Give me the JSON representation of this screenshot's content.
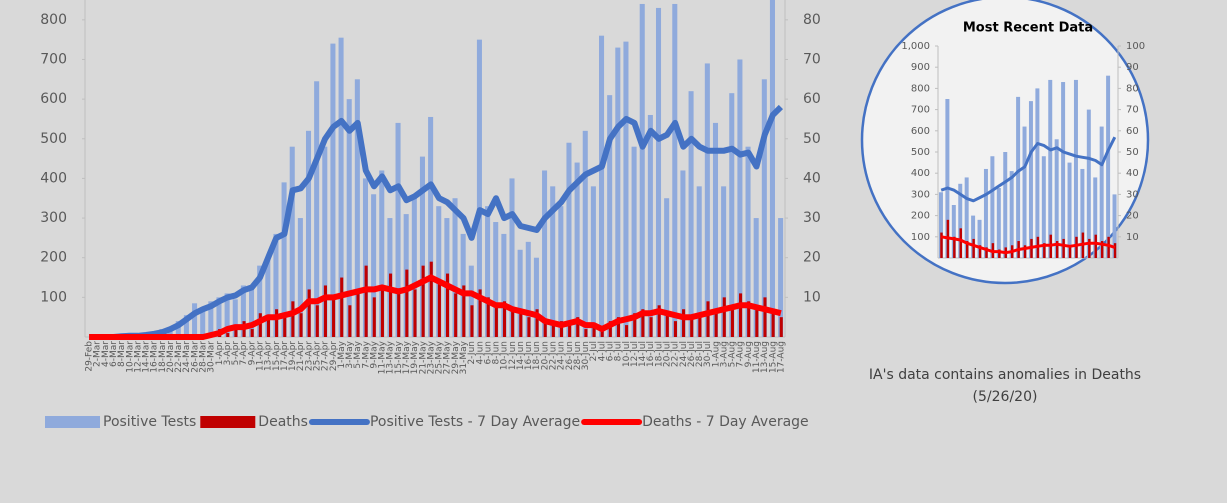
{
  "chart_data": [
    {
      "type": "combo",
      "categories": [
        "29-Feb",
        "2-Mar",
        "4-Mar",
        "6-Mar",
        "8-Mar",
        "10-Mar",
        "12-Mar",
        "14-Mar",
        "16-Mar",
        "18-Mar",
        "20-Mar",
        "22-Mar",
        "24-Mar",
        "26-Mar",
        "28-Mar",
        "30-Mar",
        "1-Apr",
        "3-Apr",
        "5-Apr",
        "7-Apr",
        "9-Apr",
        "11-Apr",
        "13-Apr",
        "15-Apr",
        "17-Apr",
        "19-Apr",
        "21-Apr",
        "23-Apr",
        "25-Apr",
        "27-Apr",
        "29-Apr",
        "1-May",
        "3-May",
        "5-May",
        "7-May",
        "9-May",
        "11-May",
        "13-May",
        "15-May",
        "17-May",
        "19-May",
        "21-May",
        "23-May",
        "25-May",
        "27-May",
        "29-May",
        "31-May",
        "2-Jun",
        "4-Jun",
        "6-Jun",
        "8-Jun",
        "10-Jun",
        "12-Jun",
        "14-Jun",
        "16-Jun",
        "18-Jun",
        "20-Jun",
        "22-Jun",
        "24-Jun",
        "26-Jun",
        "28-Jun",
        "30-Jun",
        "2-Jul",
        "4-Jul",
        "6-Jul",
        "8-Jul",
        "10-Jul",
        "12-Jul",
        "14-Jul",
        "16-Jul",
        "18-Jul",
        "20-Jul",
        "22-Jul",
        "24-Jul",
        "26-Jul",
        "28-Jul",
        "30-Jul",
        "1-Aug",
        "3-Aug",
        "5-Aug",
        "7-Aug",
        "9-Aug",
        "11-Aug",
        "13-Aug",
        "15-Aug",
        "17-Aug"
      ],
      "series": [
        {
          "name": "Positive Tests",
          "type": "bar",
          "color": "#8faadc",
          "values": [
            0,
            0,
            0,
            0,
            3,
            2,
            5,
            8,
            10,
            20,
            25,
            40,
            55,
            85,
            75,
            90,
            100,
            110,
            95,
            130,
            120,
            180,
            195,
            260,
            390,
            480,
            300,
            520,
            645,
            480,
            740,
            755,
            600,
            650,
            400,
            360,
            420,
            300,
            540,
            310,
            360,
            455,
            555,
            330,
            300,
            350,
            260,
            180,
            750,
            330,
            290,
            260,
            400,
            220,
            240,
            200,
            420,
            380,
            330,
            490,
            440,
            520,
            380,
            760,
            610,
            730,
            745,
            480,
            840,
            560,
            830,
            350,
            840,
            420,
            620,
            380,
            690,
            540,
            380,
            615,
            700,
            480,
            300,
            650,
            850,
            300
          ]
        },
        {
          "name": "Deaths",
          "type": "bar",
          "axis": "y2",
          "color": "#c00000",
          "values": [
            0,
            0,
            0,
            0,
            0,
            0,
            0,
            0,
            0,
            0,
            0,
            0,
            0,
            0,
            0,
            1,
            2,
            1,
            3,
            4,
            2,
            6,
            5,
            7,
            5,
            9,
            6,
            12,
            8,
            13,
            10,
            15,
            8,
            11,
            18,
            10,
            13,
            16,
            12,
            17,
            12,
            18,
            19,
            14,
            16,
            11,
            13,
            8,
            12,
            10,
            8,
            9,
            7,
            6,
            5,
            7,
            4,
            3,
            4,
            3,
            5,
            2,
            3,
            2,
            4,
            5,
            3,
            6,
            7,
            5,
            8,
            6,
            4,
            7,
            5,
            6,
            9,
            7,
            10,
            8,
            11,
            9,
            7,
            10,
            6,
            5
          ]
        },
        {
          "name": "Positive Tests - 7 Day Average",
          "type": "line",
          "color": "#4472c4",
          "values": [
            0,
            0,
            0,
            0,
            2,
            3,
            3,
            5,
            8,
            12,
            20,
            30,
            45,
            60,
            70,
            78,
            90,
            100,
            105,
            118,
            125,
            150,
            200,
            250,
            260,
            370,
            375,
            400,
            450,
            500,
            530,
            545,
            520,
            540,
            420,
            380,
            405,
            370,
            380,
            345,
            355,
            370,
            385,
            350,
            340,
            320,
            300,
            250,
            320,
            310,
            350,
            300,
            310,
            280,
            275,
            270,
            300,
            320,
            340,
            370,
            390,
            410,
            420,
            430,
            500,
            530,
            550,
            540,
            480,
            520,
            500,
            510,
            540,
            480,
            500,
            480,
            470,
            470,
            470,
            475,
            460,
            465,
            430,
            510,
            560,
            580
          ]
        },
        {
          "name": "Deaths - 7 Day Average",
          "type": "line",
          "axis": "y2",
          "color": "#ff0000",
          "values": [
            0,
            0,
            0,
            0,
            0,
            0,
            0,
            0,
            0,
            0,
            0,
            0,
            0,
            0,
            0,
            0.5,
            1,
            2,
            2.5,
            2.5,
            3,
            4,
            5,
            5,
            5.5,
            6,
            7,
            9,
            9,
            10,
            10,
            10.5,
            11,
            11.5,
            12,
            12,
            12.5,
            12,
            11.5,
            12,
            13,
            14,
            15,
            14,
            13,
            12,
            11,
            11,
            10,
            9,
            8,
            8,
            7,
            6.5,
            6,
            5.5,
            4,
            3.5,
            3,
            3.5,
            4,
            3,
            3,
            2,
            3,
            4,
            4.5,
            5,
            6,
            6,
            6.5,
            6,
            5.5,
            5,
            5,
            5.5,
            6,
            6.5,
            7,
            7.5,
            8,
            8,
            7.5,
            7,
            6.5,
            6
          ]
        }
      ],
      "ylim": [
        0,
        850
      ],
      "yticks": [
        100,
        200,
        300,
        400,
        500,
        600,
        700,
        800
      ],
      "y2lim": [
        0,
        85
      ],
      "y2ticks": [
        10,
        20,
        30,
        40,
        50,
        60,
        70,
        80
      ],
      "legend": "bottom"
    },
    {
      "type": "combo",
      "title": "Most Recent Data",
      "series": [
        {
          "type": "bar",
          "color": "#8faadc",
          "values": [
            310,
            750,
            250,
            350,
            380,
            200,
            180,
            420,
            480,
            330,
            500,
            410,
            760,
            620,
            740,
            800,
            480,
            840,
            560,
            830,
            450,
            840,
            420,
            700,
            380,
            620,
            860,
            300
          ]
        },
        {
          "type": "bar",
          "axis": "y2",
          "color": "#c00000",
          "values": [
            12,
            18,
            10,
            14,
            8,
            9,
            6,
            5,
            7,
            4,
            5,
            6,
            8,
            6,
            9,
            10,
            7,
            11,
            8,
            9,
            6,
            10,
            12,
            9,
            11,
            8,
            10,
            7
          ]
        },
        {
          "type": "line",
          "color": "#4472c4",
          "values": [
            320,
            330,
            320,
            300,
            280,
            270,
            285,
            300,
            320,
            340,
            360,
            380,
            410,
            430,
            500,
            540,
            530,
            510,
            520,
            500,
            490,
            480,
            475,
            470,
            460,
            440,
            510,
            570
          ]
        },
        {
          "type": "line",
          "axis": "y2",
          "color": "#ff0000",
          "values": [
            10,
            9.5,
            9,
            8.5,
            7,
            6,
            5,
            4,
            3,
            3,
            2.5,
            3,
            4,
            4.5,
            5,
            5.5,
            6,
            6,
            6.5,
            6,
            5.5,
            6,
            6.5,
            7,
            7,
            6.5,
            6,
            5
          ]
        }
      ],
      "ylim": [
        0,
        1000
      ],
      "yticks": [
        100,
        200,
        300,
        400,
        500,
        600,
        700,
        800,
        900,
        {
          "value": 1000,
          "label": "1,000"
        }
      ],
      "y2lim": [
        0,
        100
      ],
      "y2ticks": [
        10,
        20,
        30,
        40,
        50,
        60,
        70,
        80,
        90,
        100
      ]
    }
  ],
  "note": "IA's data contains anomalies in Deaths (5/26/20)"
}
